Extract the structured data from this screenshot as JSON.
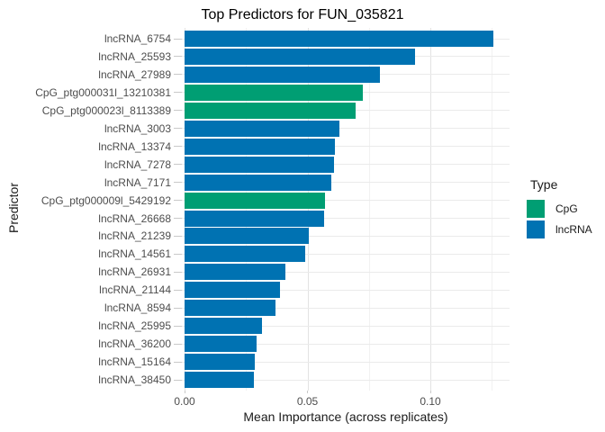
{
  "chart_data": {
    "type": "bar",
    "orientation": "horizontal",
    "title": "Top Predictors for FUN_035821",
    "xlabel": "Mean Importance (across replicates)",
    "ylabel": "Predictor",
    "xlim": [
      0,
      0.1325
    ],
    "grid": true,
    "legend_position": "right",
    "legend_title": "Type",
    "x_ticks": [
      {
        "label": "0.00",
        "value": 0.0
      },
      {
        "label": "0.05",
        "value": 0.05
      },
      {
        "label": "0.10",
        "value": 0.1
      }
    ],
    "x_minor_gridlines": [
      0.025,
      0.075,
      0.125
    ],
    "legend_items": [
      {
        "label": "CpG",
        "color": "#009E73"
      },
      {
        "label": "lncRNA",
        "color": "#0072B2"
      }
    ],
    "type_colors": {
      "CpG": "#009E73",
      "lncRNA": "#0072B2"
    },
    "bars": [
      {
        "category": "lncRNA_6754",
        "value": 0.1255,
        "type": "lncRNA"
      },
      {
        "category": "lncRNA_25593",
        "value": 0.0937,
        "type": "lncRNA"
      },
      {
        "category": "lncRNA_27989",
        "value": 0.0794,
        "type": "lncRNA"
      },
      {
        "category": "CpG_ptg000031l_13210381",
        "value": 0.0724,
        "type": "CpG"
      },
      {
        "category": "CpG_ptg000023l_8113389",
        "value": 0.0696,
        "type": "CpG"
      },
      {
        "category": "lncRNA_3003",
        "value": 0.0629,
        "type": "lncRNA"
      },
      {
        "category": "lncRNA_13374",
        "value": 0.0613,
        "type": "lncRNA"
      },
      {
        "category": "lncRNA_7278",
        "value": 0.0608,
        "type": "lncRNA"
      },
      {
        "category": "lncRNA_7171",
        "value": 0.0597,
        "type": "lncRNA"
      },
      {
        "category": "CpG_ptg000009l_5429192",
        "value": 0.0572,
        "type": "CpG"
      },
      {
        "category": "lncRNA_26668",
        "value": 0.0568,
        "type": "lncRNA"
      },
      {
        "category": "lncRNA_21239",
        "value": 0.0505,
        "type": "lncRNA"
      },
      {
        "category": "lncRNA_14561",
        "value": 0.0491,
        "type": "lncRNA"
      },
      {
        "category": "lncRNA_26931",
        "value": 0.0409,
        "type": "lncRNA"
      },
      {
        "category": "lncRNA_21144",
        "value": 0.0389,
        "type": "lncRNA"
      },
      {
        "category": "lncRNA_8594",
        "value": 0.0369,
        "type": "lncRNA"
      },
      {
        "category": "lncRNA_25995",
        "value": 0.0315,
        "type": "lncRNA"
      },
      {
        "category": "lncRNA_36200",
        "value": 0.0292,
        "type": "lncRNA"
      },
      {
        "category": "lncRNA_15164",
        "value": 0.0284,
        "type": "lncRNA"
      },
      {
        "category": "lncRNA_38450",
        "value": 0.0281,
        "type": "lncRNA"
      }
    ]
  }
}
